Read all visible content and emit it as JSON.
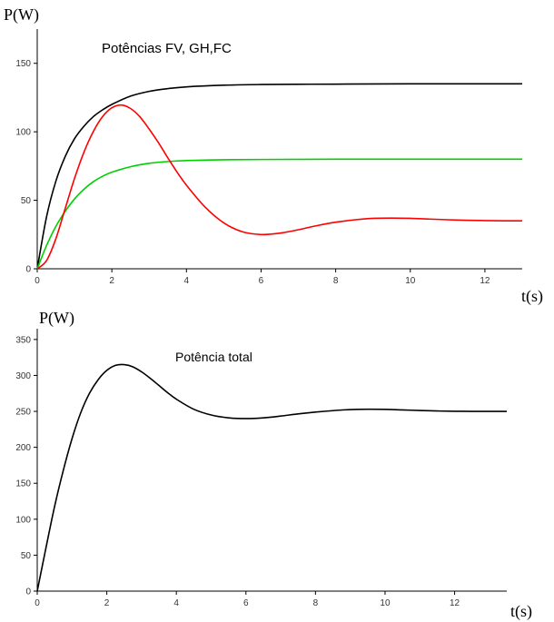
{
  "chart_data": [
    {
      "type": "line",
      "title": "Potências FV, GH,FC",
      "ylabel": "P(W)",
      "xlabel": "t(s)",
      "xlim": [
        0,
        13
      ],
      "ylim": [
        0,
        175
      ],
      "xticks": [
        0,
        2,
        4,
        6,
        8,
        10,
        12
      ],
      "yticks": [
        0,
        50,
        100,
        150
      ],
      "grid": false,
      "series": [
        {
          "color": "#000000",
          "x": [
            0,
            0.25,
            0.5,
            0.75,
            1,
            1.25,
            1.5,
            1.75,
            2,
            2.5,
            3,
            3.5,
            4,
            5,
            6,
            7,
            8,
            10,
            13
          ],
          "values": [
            0,
            38,
            64,
            82,
            95,
            104,
            111,
            116,
            120,
            126,
            129.5,
            131.5,
            132.8,
            134,
            134.5,
            134.7,
            134.8,
            135,
            135
          ]
        },
        {
          "color": "#00d000",
          "x": [
            0,
            0.25,
            0.5,
            0.75,
            1,
            1.25,
            1.5,
            1.75,
            2,
            2.5,
            3,
            3.5,
            4,
            5,
            6,
            8,
            10,
            13
          ],
          "values": [
            0,
            17,
            31,
            42,
            51,
            58,
            63.5,
            67.5,
            70.5,
            74.5,
            77,
            78.3,
            79,
            79.6,
            79.8,
            80,
            80,
            80
          ]
        },
        {
          "color": "#ff0000",
          "x": [
            0,
            0.25,
            0.5,
            0.75,
            1,
            1.25,
            1.5,
            1.75,
            2,
            2.25,
            2.5,
            2.75,
            3,
            3.25,
            3.5,
            3.75,
            4,
            4.5,
            5,
            5.5,
            6,
            6.5,
            7,
            7.5,
            8,
            8.5,
            9,
            9.5,
            10,
            10.5,
            11,
            11.5,
            12,
            12.5,
            13
          ],
          "values": [
            0,
            6,
            22,
            44,
            66,
            85,
            100,
            111,
            117.5,
            119.5,
            117,
            111,
            102,
            92,
            81,
            70.5,
            61,
            45,
            33.5,
            27,
            25,
            26,
            28.5,
            31.5,
            34,
            35.7,
            36.8,
            37,
            36.8,
            36.3,
            35.8,
            35.4,
            35.2,
            35,
            35
          ]
        }
      ]
    },
    {
      "type": "line",
      "title": "Potência total",
      "ylabel": "P(W)",
      "xlabel": "t(s)",
      "xlim": [
        0,
        13.5
      ],
      "ylim": [
        0,
        365
      ],
      "xticks": [
        0,
        2,
        4,
        6,
        8,
        10,
        12
      ],
      "yticks": [
        0,
        50,
        100,
        150,
        200,
        250,
        300,
        350
      ],
      "grid": false,
      "series": [
        {
          "color": "#000000",
          "x": [
            0,
            0.25,
            0.5,
            0.75,
            1,
            1.25,
            1.5,
            1.75,
            2,
            2.25,
            2.5,
            2.75,
            3,
            3.25,
            3.5,
            3.75,
            4,
            4.5,
            5,
            5.5,
            6,
            6.5,
            7,
            7.5,
            8,
            8.5,
            9,
            9.5,
            10,
            10.5,
            11,
            11.5,
            12,
            12.5,
            13,
            13.5
          ],
          "values": [
            0,
            60,
            118,
            168,
            212,
            248,
            275,
            294,
            307,
            314,
            315,
            312,
            305,
            296,
            286,
            276,
            267,
            253,
            245,
            241,
            240,
            241,
            243.5,
            246.5,
            249,
            251,
            252.5,
            253,
            252.8,
            252,
            251.3,
            250.6,
            250.2,
            250,
            250,
            250
          ]
        }
      ]
    }
  ]
}
